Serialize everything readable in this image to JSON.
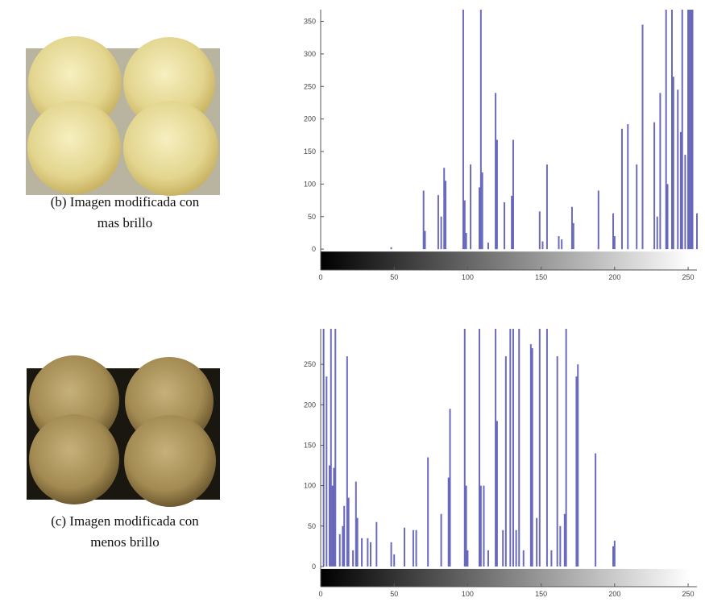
{
  "chart_data": [
    {
      "type": "bar",
      "caption": [
        "(b) Imagen modificada con",
        "mas brillo"
      ],
      "color": "#3a3aa8",
      "x": [
        48,
        70,
        71,
        80,
        82,
        84,
        85,
        97,
        98,
        99,
        102,
        108,
        109,
        110,
        114,
        119,
        120,
        125,
        131,
        130,
        149,
        151,
        154,
        162,
        164,
        171,
        172,
        189,
        199,
        200,
        205,
        209,
        215,
        219,
        227,
        229,
        231,
        235,
        236,
        239,
        240,
        243,
        245,
        246,
        248,
        250,
        251,
        252,
        253,
        256
      ],
      "values": [
        3,
        90,
        28,
        83,
        50,
        125,
        105,
        368,
        75,
        25,
        130,
        95,
        368,
        118,
        10,
        240,
        168,
        72,
        168,
        82,
        58,
        12,
        130,
        20,
        15,
        65,
        40,
        90,
        55,
        20,
        185,
        192,
        130,
        345,
        195,
        50,
        240,
        368,
        100,
        368,
        265,
        245,
        180,
        368,
        145,
        368,
        368,
        368,
        368,
        55
      ],
      "xlim": [
        0,
        256
      ],
      "ylim": [
        -32,
        368
      ],
      "xticks": [
        0,
        50,
        100,
        150,
        200,
        250
      ],
      "yticks": [
        0,
        50,
        100,
        150,
        200,
        250,
        300,
        350
      ]
    },
    {
      "type": "bar",
      "caption": [
        "(c) Imagen modificada con",
        "menos brillo"
      ],
      "color": "#3a3aa8",
      "x": [
        2,
        4,
        6,
        7,
        8,
        9,
        10,
        13,
        15,
        16,
        18,
        19,
        22,
        24,
        25,
        28,
        32,
        34,
        38,
        48,
        50,
        57,
        63,
        65,
        73,
        82,
        87,
        88,
        98,
        99,
        100,
        108,
        109,
        111,
        114,
        119,
        120,
        124,
        126,
        129,
        131,
        133,
        135,
        138,
        143,
        144,
        147,
        149,
        154,
        157,
        161,
        163,
        166,
        167,
        174,
        175,
        187,
        199,
        200
      ],
      "values": [
        294,
        235,
        125,
        294,
        100,
        122,
        294,
        40,
        50,
        75,
        260,
        85,
        20,
        105,
        60,
        35,
        35,
        30,
        55,
        30,
        15,
        48,
        45,
        45,
        135,
        65,
        110,
        195,
        294,
        100,
        20,
        294,
        100,
        100,
        20,
        294,
        180,
        45,
        260,
        294,
        294,
        45,
        294,
        20,
        275,
        270,
        60,
        294,
        294,
        20,
        260,
        50,
        65,
        294,
        235,
        250,
        140,
        25,
        32
      ],
      "xlim": [
        0,
        256
      ],
      "ylim": [
        -25,
        294
      ],
      "xticks": [
        0,
        50,
        100,
        150,
        200,
        250
      ],
      "yticks": [
        0,
        50,
        100,
        150,
        200,
        250
      ]
    }
  ]
}
